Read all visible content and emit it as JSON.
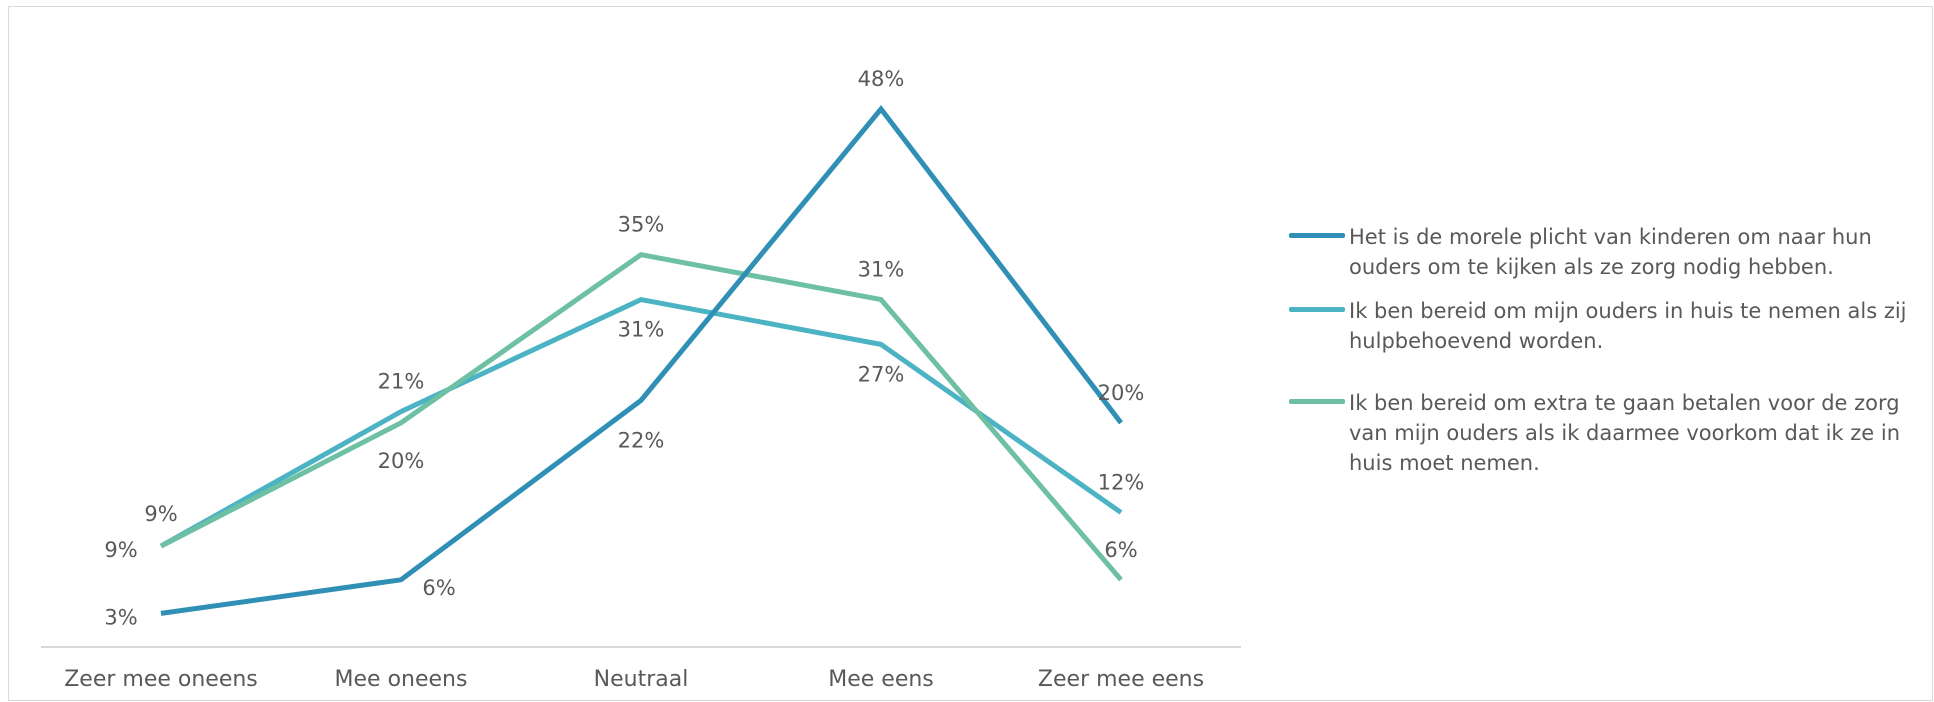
{
  "chart_data": {
    "type": "line",
    "categories": [
      "Zeer mee oneens",
      "Mee oneens",
      "Neutraal",
      "Mee eens",
      "Zeer mee eens"
    ],
    "series": [
      {
        "name": "Het is de morele plicht van kinderen om naar hun ouders om te kijken als ze zorg nodig hebben.",
        "values": [
          3,
          6,
          22,
          48,
          20
        ],
        "labels": [
          "3%",
          "6%",
          "22%",
          "48%",
          "20%"
        ],
        "color": "#2f8fb5"
      },
      {
        "name": "Ik ben bereid om mijn ouders in huis te nemen als zij hulpbehoevend worden.",
        "values": [
          9,
          21,
          31,
          27,
          12
        ],
        "labels": [
          "9%",
          "21%",
          "31%",
          "27%",
          "12%"
        ],
        "color": "#4bb3c4"
      },
      {
        "name": "Ik ben bereid om extra te gaan betalen voor de zorg van mijn ouders als ik daarmee voorkom dat ik ze in huis moet nemen.",
        "values": [
          9,
          20,
          35,
          31,
          6
        ],
        "labels": [
          "9%",
          "20%",
          "35%",
          "31%",
          "6%"
        ],
        "color": "#6dc0a3"
      }
    ],
    "ylim": [
      0,
      53
    ],
    "grid": false,
    "legend": "right",
    "axis_color": "#d9d9d9",
    "text_color": "#595959"
  }
}
